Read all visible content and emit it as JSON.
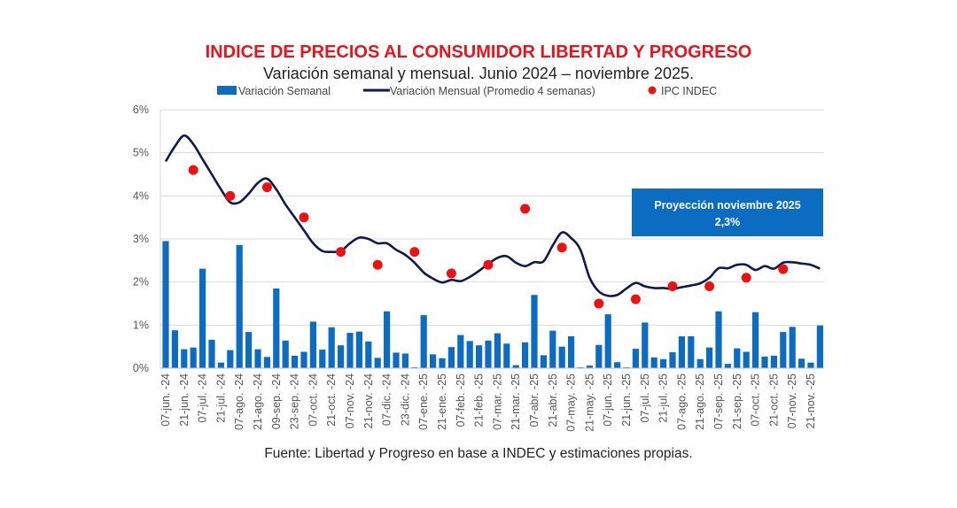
{
  "colors": {
    "title": "#e8131b",
    "bars": "#0b6cc2",
    "line": "#0c1a4f",
    "dots": "#ee1111",
    "grid": "#d9d9d9",
    "box": "#0b6cc2"
  },
  "chart_data": {
    "type": "bar+line+scatter",
    "title": "INDICE DE PRECIOS AL CONSUMIDOR LIBERTAD Y PROGRESO",
    "subtitle": "Variación semanal y mensual. Junio 2024 – noviembre 2025.",
    "source": "Fuente: Libertad y Progreso en base a INDEC y estimaciones propias.",
    "legend_position": "top",
    "grid": true,
    "ylim": [
      0,
      6
    ],
    "yticks": [
      "0%",
      "1%",
      "2%",
      "3%",
      "4%",
      "5%",
      "6%"
    ],
    "xtick_labels": [
      "07-jun. -24",
      "21-jun. -24",
      "07-jul. -24",
      "21-jul. -24",
      "07-ago. -24",
      "21-ago. -24",
      "09-sep. -24",
      "23-sep. -24",
      "07-oct. -24",
      "21-oct. -24",
      "07-nov. -24",
      "21-nov. -24",
      "07-dic. -24",
      "23-dic. -24",
      "07-ene. -25",
      "21-ene. -25",
      "07-feb. -25",
      "21-feb. -25",
      "07-mar. -25",
      "21-mar. -25",
      "07-abr. -25",
      "21-abr. -25",
      "07-may. -25",
      "21-may. -25",
      "07-jun. -25",
      "21-jun. -25",
      "07-jul. -25",
      "21-jul. -25",
      "07-ago. -25",
      "21-ago. -25",
      "07-sep. -25",
      "21-sep. -25",
      "07-oct. -25",
      "21-oct. -25",
      "07-nov. -25",
      "21-nov. -25"
    ],
    "series": [
      {
        "name": "Variación Semanal",
        "type": "bar",
        "values": [
          2.95,
          0.88,
          0.44,
          0.48,
          2.31,
          0.66,
          0.13,
          0.42,
          2.86,
          0.84,
          0.44,
          0.26,
          1.85,
          0.64,
          0.29,
          0.38,
          1.08,
          0.43,
          0.95,
          0.53,
          0.82,
          0.85,
          0.62,
          0.24,
          1.32,
          0.36,
          0.34,
          0.02,
          1.23,
          0.32,
          0.23,
          0.49,
          0.77,
          0.63,
          0.53,
          0.64,
          0.81,
          0.57,
          0.07,
          0.6,
          1.7,
          0.3,
          0.87,
          0.5,
          0.74,
          0.02,
          0.06,
          0.54,
          1.25,
          0.14,
          0.02,
          0.45,
          1.06,
          0.25,
          0.21,
          0.37,
          0.74,
          0.74,
          0.21,
          0.48,
          1.32,
          0.1,
          0.46,
          0.38,
          1.3,
          0.27,
          0.29,
          0.84,
          0.96,
          0.22,
          0.13,
          0.99
        ]
      },
      {
        "name": "Variación Mensual (Promedio 4 semanas)",
        "type": "line",
        "values": [
          4.8,
          5.15,
          5.4,
          5.2,
          4.85,
          4.5,
          4.15,
          3.85,
          3.85,
          4.05,
          4.3,
          4.4,
          4.15,
          3.8,
          3.5,
          3.2,
          2.9,
          2.72,
          2.7,
          2.72,
          2.9,
          3.03,
          3.0,
          2.9,
          2.9,
          2.75,
          2.63,
          2.45,
          2.22,
          2.08,
          1.99,
          2.05,
          2.02,
          2.12,
          2.26,
          2.42,
          2.56,
          2.6,
          2.45,
          2.37,
          2.46,
          2.48,
          2.85,
          3.15,
          3.02,
          2.75,
          2.1,
          1.78,
          1.68,
          1.7,
          1.85,
          1.98,
          1.9,
          1.86,
          1.86,
          1.84,
          1.88,
          1.92,
          1.97,
          2.1,
          2.32,
          2.32,
          2.4,
          2.4,
          2.28,
          2.37,
          2.31,
          2.45,
          2.46,
          2.43,
          2.4,
          2.31
        ]
      },
      {
        "name": "IPC INDEC",
        "type": "scatter",
        "values": [
          4.6,
          4.0,
          4.2,
          3.5,
          2.7,
          2.4,
          2.7,
          2.2,
          2.4,
          3.7,
          2.8,
          1.5,
          1.6,
          1.9,
          1.9,
          2.1,
          2.3
        ]
      }
    ],
    "annotation": {
      "line1": "Proyección noviembre 2025",
      "line2": "2,3%"
    }
  }
}
